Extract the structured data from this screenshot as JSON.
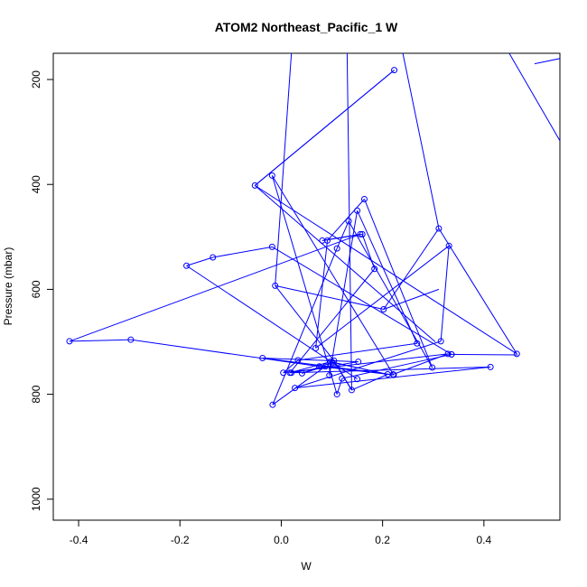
{
  "chart_data": {
    "type": "line",
    "title": "ATOM2 Northeast_Pacific_1 W",
    "xlabel": "W",
    "ylabel": "Pressure (mbar)",
    "xlim": [
      -0.45,
      0.55
    ],
    "ylim": [
      1040,
      150
    ],
    "x_ticks": [
      -0.4,
      -0.2,
      0.0,
      0.2,
      0.4
    ],
    "x_tick_labels": [
      "-0.4",
      "-0.2",
      "0.0",
      "0.2",
      "0.4"
    ],
    "y_ticks": [
      200,
      400,
      600,
      800,
      1000
    ],
    "y_tick_labels": [
      "200",
      "400",
      "600",
      "800",
      "1000"
    ],
    "grid": false,
    "color": "#0000ff",
    "series": [
      {
        "x": [
          0.223,
          -0.052,
          0.465,
          0.311,
          0.202,
          -0.012,
          0.104,
          0.139,
          0.21,
          0.101,
          0.041,
          0.087,
          -0.017,
          0.11,
          0.133,
          0.298,
          0.164,
          0.091,
          0.068,
          0.331,
          0.315,
          0.027,
          0.413,
          0.02,
          0.152,
          -0.037,
          0.222,
          0.075,
          -0.297,
          -0.418,
          0.156,
          0.081,
          0.16,
          0.184,
          0.017,
          0.097,
          0.095,
          0.15,
          0.268,
          0.033,
          0.004,
          0.329,
          0.221,
          -0.018,
          0.11,
          0.12,
          0.336,
          0.336,
          -0.018,
          -0.135,
          -0.187,
          0.15
        ],
        "y": [
          182,
          402,
          723,
          484,
          638,
          593,
          736,
          792,
          762,
          739,
          760,
          747,
          820,
          522,
          470,
          749,
          428,
          507,
          712,
          517,
          699,
          788,
          748,
          759,
          738,
          731,
          763,
          747,
          696,
          699,
          495,
          507,
          495,
          561,
          759,
          738,
          764,
          450,
          703,
          735,
          759,
          723,
          762,
          383,
          800,
          770,
          724,
          724,
          519,
          539,
          555,
          771
        ]
      }
    ],
    "segments": [
      [
        0.223,
        182,
        -0.052,
        402
      ],
      [
        -0.052,
        402,
        0.304,
        700
      ],
      [
        0.467,
        725,
        0.33,
        724
      ],
      [
        0.5,
        170,
        0.6,
        150
      ],
      [
        0.45,
        150,
        0.6,
        400
      ],
      [
        0.6,
        400,
        0.6,
        420
      ],
      [
        0.311,
        484,
        0.24,
        150
      ],
      [
        0.202,
        638,
        0.311,
        600
      ],
      [
        -0.012,
        593,
        0.02,
        150
      ],
      [
        0.104,
        736,
        0.139,
        792
      ],
      [
        0.139,
        792,
        0.13,
        150
      ],
      [
        0.21,
        762,
        0.101,
        739
      ]
    ]
  }
}
